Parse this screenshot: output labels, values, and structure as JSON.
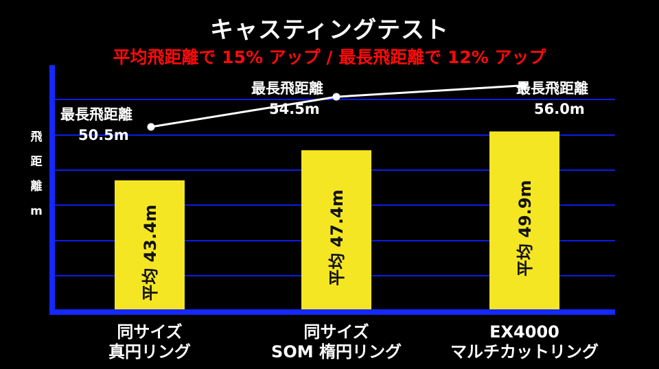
{
  "chart_data": {
    "type": "bar",
    "title": "キャスティングテスト",
    "subtitle": "平均飛距離で 15% アップ / 最長飛距離で 12% アップ",
    "ylabel": [
      "飛",
      "距",
      "離",
      "m"
    ],
    "ylim": [
      26,
      58.7
    ],
    "grid": true,
    "categories": [
      [
        "同サイズ",
        "真円リング"
      ],
      [
        "同サイズ",
        "SOM 楕円リング"
      ],
      [
        "EX4000",
        "マルチカットリング"
      ]
    ],
    "series": [
      {
        "kind": "bar",
        "values": [
          43.4,
          47.4,
          49.9
        ],
        "labels": [
          "平均 43.4m",
          "平均 47.4m",
          "平均 49.9m"
        ]
      },
      {
        "kind": "line",
        "values": [
          50.5,
          54.5,
          56.0
        ],
        "label_title": "最長飛距離",
        "labels": [
          "50.5m",
          "54.5m",
          "56.0m"
        ]
      }
    ],
    "colors": {
      "bar": "#f5e623",
      "grid": "#0a1ee6",
      "axis": "#1428ff",
      "line": "#ffffff",
      "title": "#ffffff",
      "subtitle": "#ff0a0a"
    }
  }
}
